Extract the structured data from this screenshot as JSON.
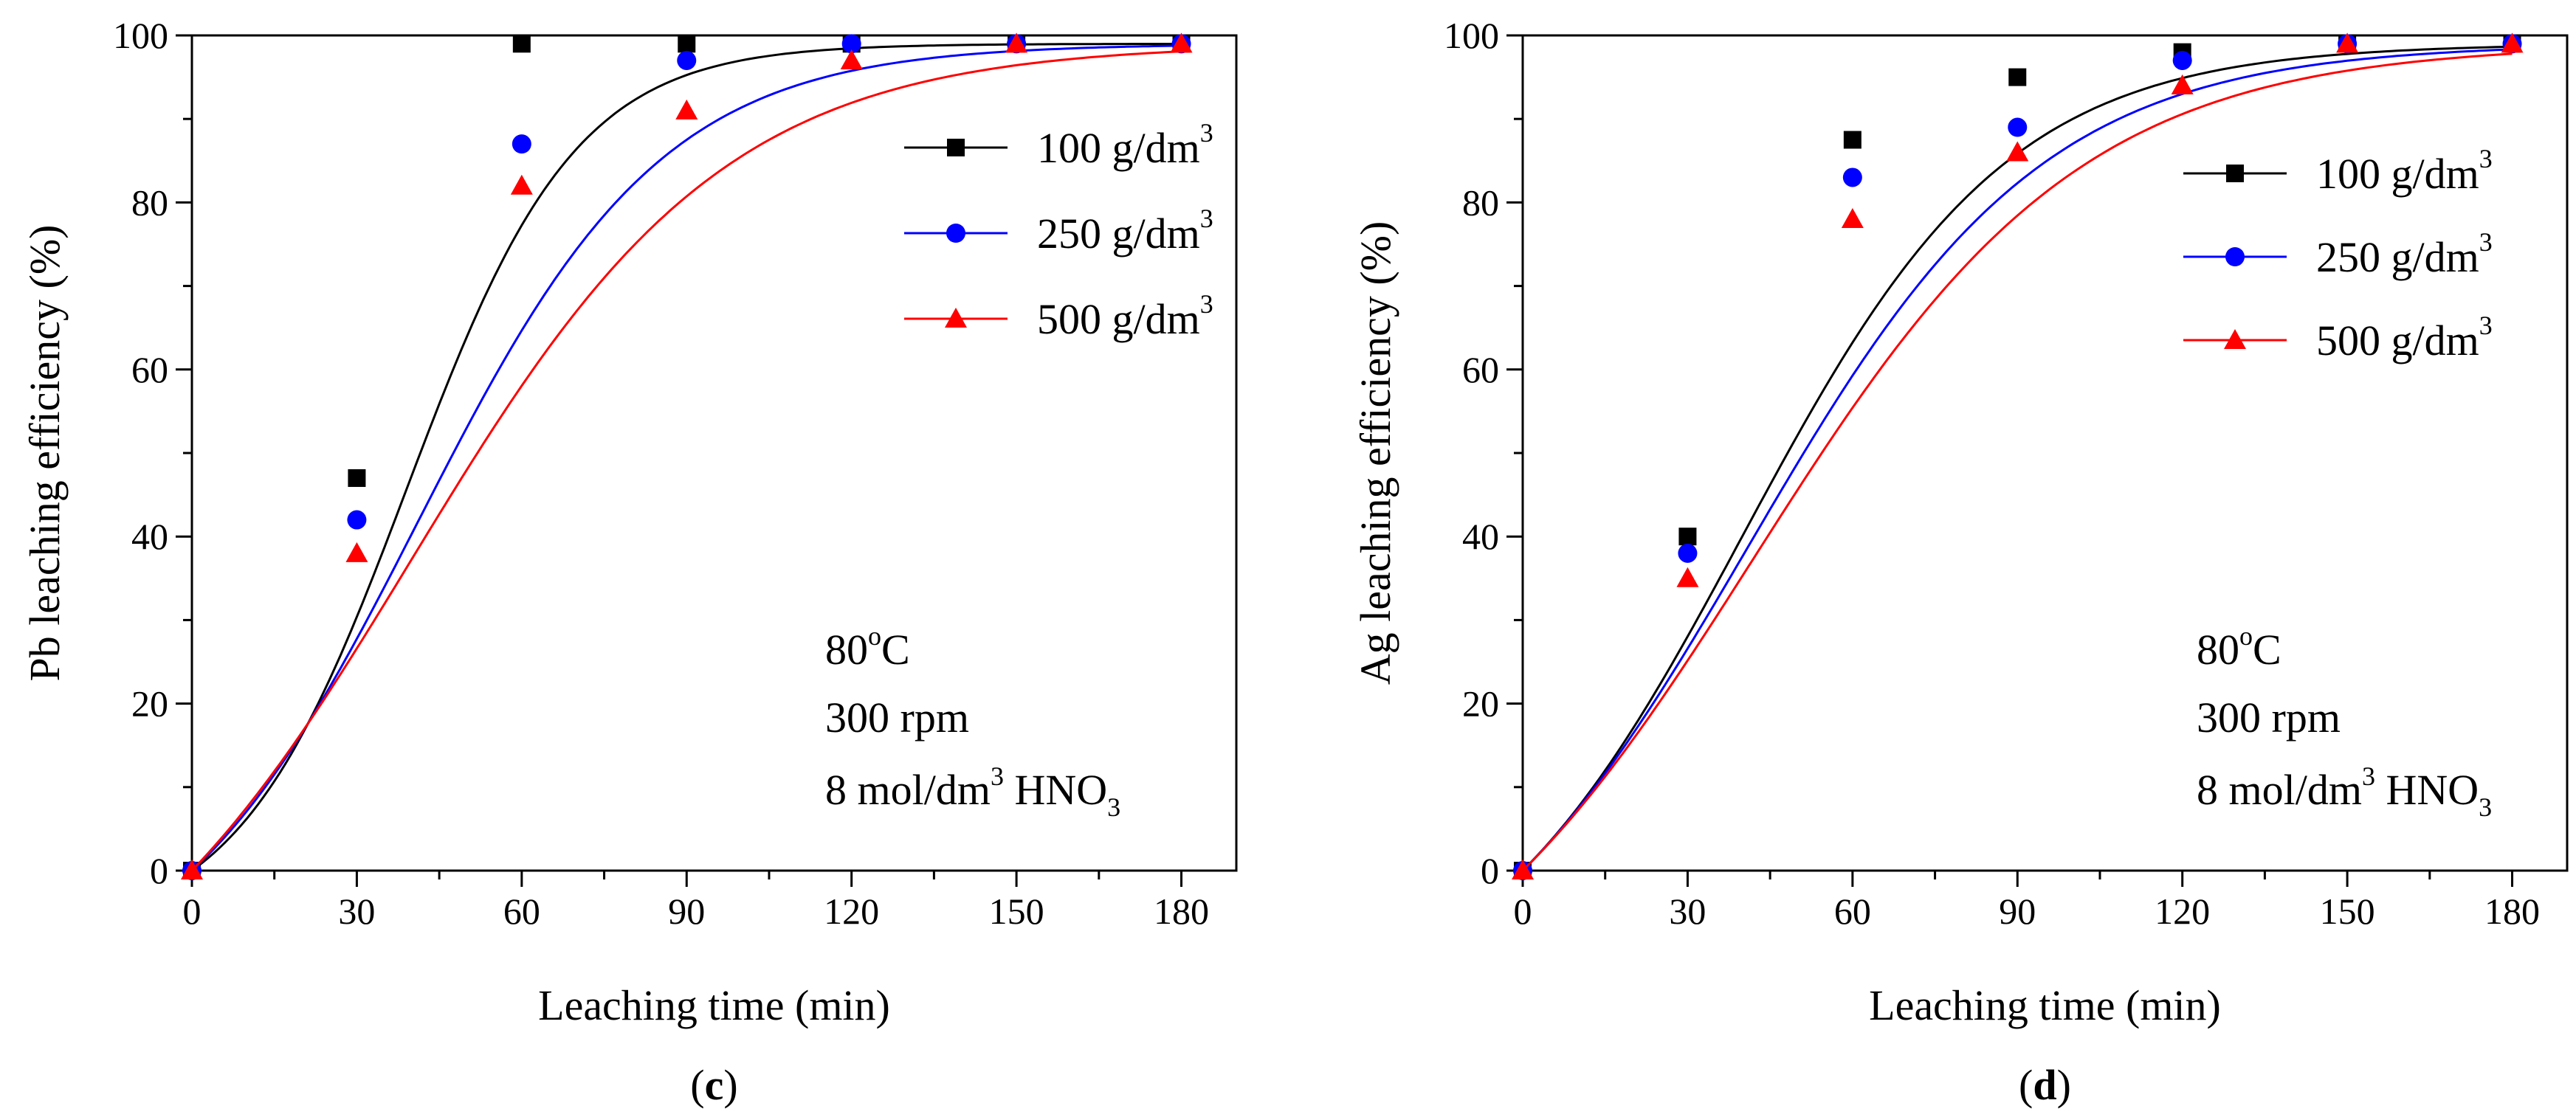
{
  "chart_data": [
    {
      "type": "scatter",
      "panel_label": "c",
      "xlabel": "Leaching time (min)",
      "ylabel": "Pb leaching efficiency (%)",
      "xlim": [
        0,
        190
      ],
      "ylim": [
        0,
        100
      ],
      "x_ticks": [
        0,
        30,
        60,
        90,
        120,
        150,
        180
      ],
      "y_ticks": [
        0,
        20,
        40,
        60,
        80,
        100
      ],
      "legend_position": "top-right",
      "fitted_curves": true,
      "conditions": {
        "temperature": "80",
        "temperature_unit": "oC",
        "speed": "300 rpm",
        "acid_conc": "8 mol/dm",
        "acid_conc_sup": "3",
        "acid_name": "HNO",
        "acid_sub": "3"
      },
      "series": [
        {
          "name": "100 g/dm",
          "name_sup": "3",
          "color": "#000000",
          "marker": "square",
          "x": [
            0,
            30,
            60,
            90,
            120,
            150,
            180
          ],
          "y": [
            0,
            47,
            99,
            99,
            99,
            99,
            99
          ],
          "curve_k": 0.065,
          "curve_x0": 39
        },
        {
          "name": "250 g/dm",
          "name_sup": "3",
          "color": "#0000ff",
          "marker": "circle",
          "x": [
            0,
            30,
            60,
            90,
            120,
            150,
            180
          ],
          "y": [
            0,
            42,
            87,
            97,
            99,
            99,
            99
          ],
          "curve_k": 0.0448,
          "curve_x0": 41
        },
        {
          "name": "500 g/dm",
          "name_sup": "3",
          "color": "#ff0000",
          "marker": "triangle",
          "x": [
            0,
            30,
            60,
            90,
            120,
            150,
            180
          ],
          "y": [
            0,
            38,
            82,
            91,
            97,
            99,
            99
          ],
          "curve_k": 0.035,
          "curve_x0": 40
        }
      ]
    },
    {
      "type": "scatter",
      "panel_label": "d",
      "xlabel": "Leaching time (min)",
      "ylabel": "Ag leaching efficiency (%)",
      "xlim": [
        0,
        190
      ],
      "ylim": [
        0,
        100
      ],
      "x_ticks": [
        0,
        30,
        60,
        90,
        120,
        150,
        180
      ],
      "y_ticks": [
        0,
        20,
        40,
        60,
        80,
        100
      ],
      "legend_position": "top-right",
      "fitted_curves": true,
      "conditions": {
        "temperature": "80",
        "temperature_unit": "oC",
        "speed": "300 rpm",
        "acid_conc": "8 mol/dm",
        "acid_conc_sup": "3",
        "acid_name": "HNO",
        "acid_sub": "3"
      },
      "series": [
        {
          "name": "100 g/dm",
          "name_sup": "3",
          "color": "#000000",
          "marker": "square",
          "x": [
            0,
            30,
            60,
            90,
            120,
            150,
            180
          ],
          "y": [
            0,
            40,
            87.5,
            95,
            98,
            99,
            99
          ],
          "curve_k": 0.0415,
          "curve_x0": 40
        },
        {
          "name": "250 g/dm",
          "name_sup": "3",
          "color": "#0000ff",
          "marker": "circle",
          "x": [
            0,
            30,
            60,
            90,
            120,
            150,
            180
          ],
          "y": [
            0,
            38,
            83,
            89,
            97,
            99,
            99
          ],
          "curve_k": 0.0373,
          "curve_x0": 41
        },
        {
          "name": "500 g/dm",
          "name_sup": "3",
          "color": "#ff0000",
          "marker": "triangle",
          "x": [
            0,
            30,
            60,
            90,
            120,
            150,
            180
          ],
          "y": [
            0,
            35,
            78,
            86,
            94,
            99,
            99
          ],
          "curve_k": 0.0335,
          "curve_x0": 42
        }
      ]
    }
  ]
}
